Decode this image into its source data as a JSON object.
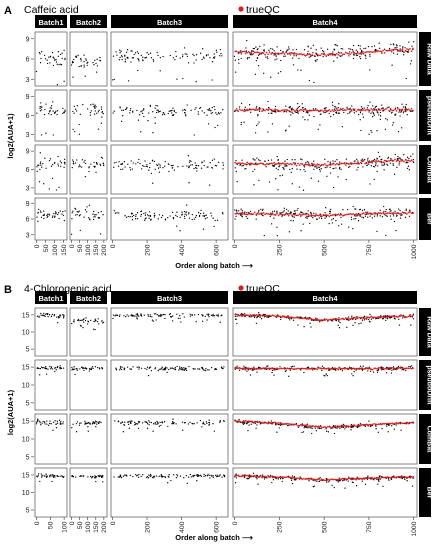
{
  "colors": {
    "strip_bg": "#000000",
    "strip_text": "#ffffff",
    "point": "#000000",
    "qc_point": "#e41a1c",
    "panel_border": "#333333",
    "tick": "#333333"
  },
  "chart_data": [
    {
      "type": "scatter",
      "panel_letter": "A",
      "title": "Caffeic acid",
      "legend": "trueQC",
      "legend_position": "top",
      "ylabel": "log2(AUA+1)",
      "xlabel": "Order along batch",
      "xlabel_arrow": "⟶",
      "ylim": [
        2,
        10
      ],
      "yticks": [
        3,
        6,
        9
      ],
      "grid": false,
      "batches": [
        {
          "name": "Batch1",
          "n": 160,
          "xlim": [
            0,
            160
          ],
          "xticks": [
            0,
            50,
            100,
            150
          ]
        },
        {
          "name": "Batch2",
          "n": 200,
          "xlim": [
            0,
            210
          ],
          "xticks": [
            0,
            50,
            100,
            150,
            200
          ]
        },
        {
          "name": "Batch3",
          "n": 650,
          "xlim": [
            0,
            660
          ],
          "xticks": [
            0,
            200,
            400,
            600
          ]
        },
        {
          "name": "Batch4",
          "n": 1000,
          "xlim": [
            0,
            1010
          ],
          "xticks": [
            0,
            250,
            500,
            750,
            1000
          ]
        }
      ],
      "methods": [
        {
          "name": "Raw Data",
          "series": [
            {
              "batch": "Batch1",
              "center": 6.0,
              "spread": 1.1
            },
            {
              "batch": "Batch2",
              "center": 5.6,
              "spread": 1.1
            },
            {
              "batch": "Batch3",
              "center": 6.4,
              "spread": 1.0
            },
            {
              "batch": "Batch4",
              "center": 7.2,
              "spread": 1.0,
              "qc_trend": [
                [
                  0,
                  7.0
                ],
                [
                  250,
                  6.8
                ],
                [
                  500,
                  6.6
                ],
                [
                  750,
                  7.1
                ],
                [
                  1000,
                  7.4
                ]
              ]
            }
          ]
        },
        {
          "name": "pseudoDrift",
          "series": [
            {
              "batch": "Batch1",
              "center": 6.8,
              "spread": 1.0
            },
            {
              "batch": "Batch2",
              "center": 6.8,
              "spread": 1.0
            },
            {
              "batch": "Batch3",
              "center": 6.7,
              "spread": 0.9
            },
            {
              "batch": "Batch4",
              "center": 6.8,
              "spread": 0.9,
              "qc_trend": [
                [
                  0,
                  6.9
                ],
                [
                  250,
                  6.8
                ],
                [
                  500,
                  6.8
                ],
                [
                  750,
                  6.9
                ],
                [
                  1000,
                  6.9
                ]
              ]
            }
          ]
        },
        {
          "name": "ComBat",
          "series": [
            {
              "batch": "Batch1",
              "center": 6.8,
              "spread": 1.1
            },
            {
              "batch": "Batch2",
              "center": 6.8,
              "spread": 1.1
            },
            {
              "batch": "Batch3",
              "center": 6.6,
              "spread": 1.0
            },
            {
              "batch": "Batch4",
              "center": 7.0,
              "spread": 1.0,
              "qc_trend": [
                [
                  0,
                  7.0
                ],
                [
                  250,
                  6.9
                ],
                [
                  500,
                  6.7
                ],
                [
                  750,
                  7.2
                ],
                [
                  1000,
                  7.6
                ]
              ]
            }
          ]
        },
        {
          "name": "Ber",
          "series": [
            {
              "batch": "Batch1",
              "center": 6.9,
              "spread": 1.0
            },
            {
              "batch": "Batch2",
              "center": 6.9,
              "spread": 1.0
            },
            {
              "batch": "Batch3",
              "center": 6.6,
              "spread": 1.0
            },
            {
              "batch": "Batch4",
              "center": 6.9,
              "spread": 1.0,
              "qc_trend": [
                [
                  0,
                  7.0
                ],
                [
                  250,
                  6.9
                ],
                [
                  500,
                  6.7
                ],
                [
                  750,
                  7.0
                ],
                [
                  1000,
                  7.2
                ]
              ]
            }
          ]
        }
      ]
    },
    {
      "type": "scatter",
      "panel_letter": "B",
      "title": "4-Chlorogenic acid",
      "legend": "trueQC",
      "legend_position": "top",
      "ylabel": "log2(AUA+1)",
      "xlabel": "Order along batch",
      "xlabel_arrow": "⟶",
      "ylim": [
        3,
        17
      ],
      "yticks": [
        5,
        10,
        15
      ],
      "grid": false,
      "batches": [
        {
          "name": "Batch1",
          "n": 100,
          "xlim": [
            0,
            105
          ],
          "xticks": [
            0,
            50,
            100
          ]
        },
        {
          "name": "Batch2",
          "n": 200,
          "xlim": [
            0,
            210
          ],
          "xticks": [
            0,
            50,
            100,
            150,
            200
          ]
        },
        {
          "name": "Batch3",
          "n": 650,
          "xlim": [
            0,
            660
          ],
          "xticks": [
            0,
            200,
            400,
            600
          ]
        },
        {
          "name": "Batch4",
          "n": 1000,
          "xlim": [
            0,
            1010
          ],
          "xticks": [
            0,
            250,
            500,
            750,
            1000
          ]
        }
      ],
      "methods": [
        {
          "name": "Raw Data",
          "series": [
            {
              "batch": "Batch1",
              "center": 14.7,
              "spread": 0.6
            },
            {
              "batch": "Batch2",
              "center": 13.2,
              "spread": 0.6
            },
            {
              "batch": "Batch3",
              "center": 14.8,
              "spread": 0.5
            },
            {
              "batch": "Batch4",
              "center": 14.6,
              "spread": 0.6,
              "qc_trend": [
                [
                  0,
                  15.0
                ],
                [
                  250,
                  14.6
                ],
                [
                  500,
                  13.5
                ],
                [
                  750,
                  14.2
                ],
                [
                  1000,
                  14.7
                ]
              ]
            }
          ]
        },
        {
          "name": "pseudoDrift",
          "series": [
            {
              "batch": "Batch1",
              "center": 14.8,
              "spread": 0.5
            },
            {
              "batch": "Batch2",
              "center": 14.6,
              "spread": 0.5
            },
            {
              "batch": "Batch3",
              "center": 14.6,
              "spread": 0.5
            },
            {
              "batch": "Batch4",
              "center": 14.6,
              "spread": 0.5,
              "qc_trend": [
                [
                  0,
                  14.7
                ],
                [
                  250,
                  14.6
                ],
                [
                  500,
                  14.6
                ],
                [
                  750,
                  14.6
                ],
                [
                  1000,
                  14.7
                ]
              ]
            }
          ]
        },
        {
          "name": "ComBat",
          "series": [
            {
              "batch": "Batch1",
              "center": 14.6,
              "spread": 0.6
            },
            {
              "batch": "Batch2",
              "center": 14.5,
              "spread": 0.6
            },
            {
              "batch": "Batch3",
              "center": 14.6,
              "spread": 0.6
            },
            {
              "batch": "Batch4",
              "center": 14.3,
              "spread": 0.6,
              "qc_trend": [
                [
                  0,
                  15.0
                ],
                [
                  250,
                  14.4
                ],
                [
                  500,
                  13.3
                ],
                [
                  750,
                  14.0
                ],
                [
                  1000,
                  14.6
                ]
              ]
            }
          ]
        },
        {
          "name": "Ber",
          "series": [
            {
              "batch": "Batch1",
              "center": 14.7,
              "spread": 0.5
            },
            {
              "batch": "Batch2",
              "center": 14.6,
              "spread": 0.5
            },
            {
              "batch": "Batch3",
              "center": 14.7,
              "spread": 0.5
            },
            {
              "batch": "Batch4",
              "center": 14.4,
              "spread": 0.6,
              "qc_trend": [
                [
                  0,
                  14.9
                ],
                [
                  250,
                  14.4
                ],
                [
                  500,
                  13.6
                ],
                [
                  750,
                  14.1
                ],
                [
                  1000,
                  14.5
                ]
              ]
            }
          ]
        }
      ]
    }
  ]
}
